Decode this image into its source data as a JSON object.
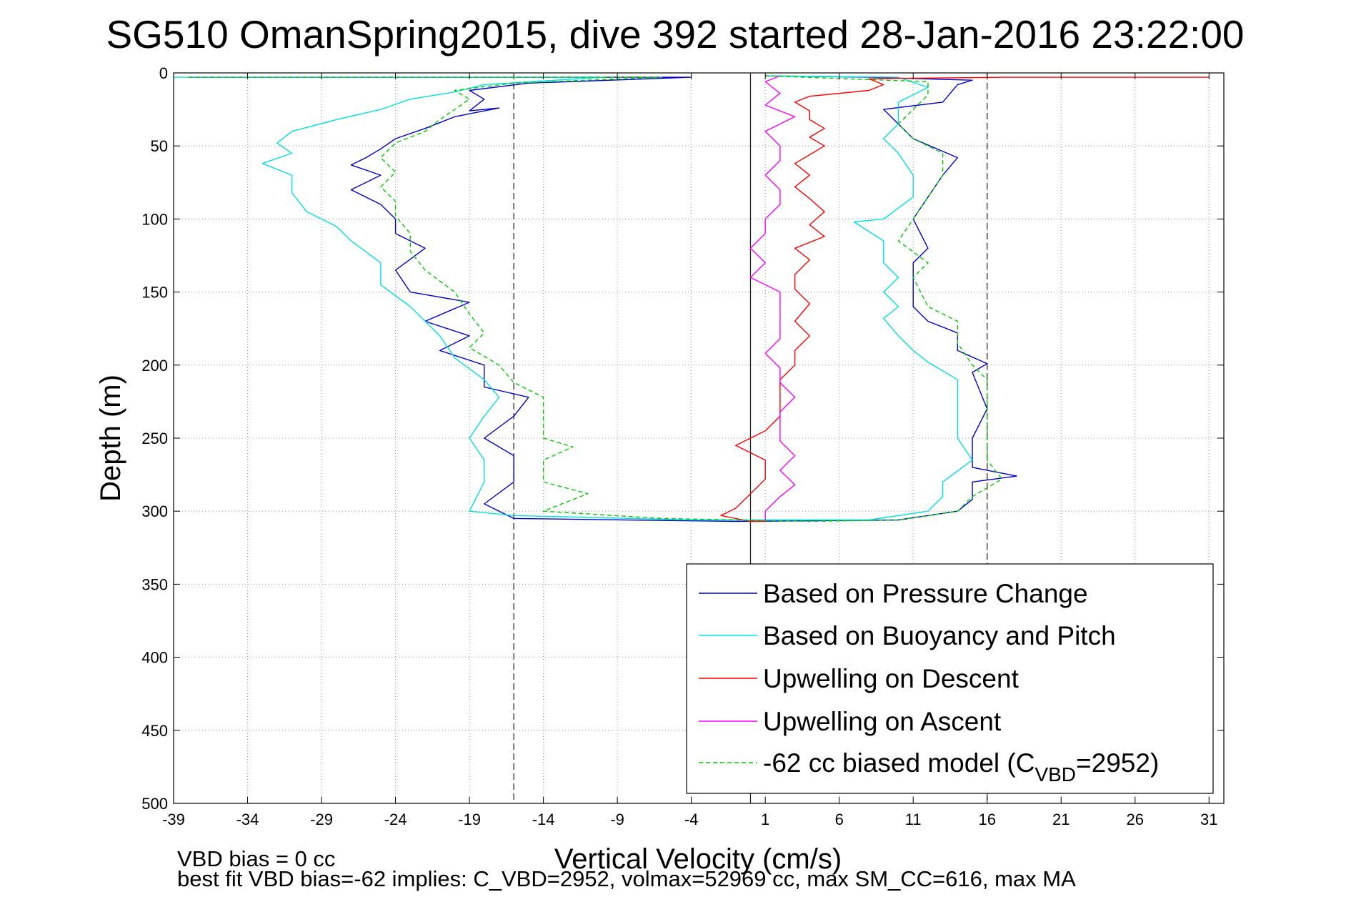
{
  "chart_data": {
    "type": "line",
    "title": "SG510 OmanSpring2015, dive 392 started 28-Jan-2016 23:22:00",
    "xlabel": "Vertical Velocity (cm/s)",
    "ylabel": "Depth (m)",
    "xlim": [
      -39,
      32
    ],
    "ylim": [
      500,
      0
    ],
    "y_reversed": true,
    "grid": true,
    "x_ticks": [
      -39,
      -34,
      -29,
      -24,
      -19,
      -14,
      -9,
      -4,
      1,
      6,
      11,
      16,
      21,
      26,
      31
    ],
    "y_ticks": [
      0,
      50,
      100,
      150,
      200,
      250,
      300,
      350,
      400,
      450,
      500
    ],
    "reference_lines": {
      "zero_x": 0,
      "dashed_x": [
        -16,
        16
      ]
    },
    "legend_position": "lower-right",
    "series": [
      {
        "name": "Based on Pressure Change",
        "color": "#0000cc",
        "style": "solid",
        "points": [
          [
            -38,
            3
          ],
          [
            -4,
            3
          ],
          [
            -15,
            7
          ],
          [
            -19,
            12
          ],
          [
            -18,
            18
          ],
          [
            -19,
            26
          ],
          [
            -17,
            24
          ],
          [
            -20,
            30
          ],
          [
            -22,
            38
          ],
          [
            -24,
            45
          ],
          [
            -25,
            52
          ],
          [
            -26,
            58
          ],
          [
            -27,
            63
          ],
          [
            -25,
            70
          ],
          [
            -27,
            80
          ],
          [
            -25,
            90
          ],
          [
            -24,
            100
          ],
          [
            -24,
            110
          ],
          [
            -22,
            120
          ],
          [
            -24,
            135
          ],
          [
            -23,
            150
          ],
          [
            -19,
            157
          ],
          [
            -22,
            170
          ],
          [
            -19,
            180
          ],
          [
            -21,
            190
          ],
          [
            -18,
            200
          ],
          [
            -18,
            215
          ],
          [
            -15,
            222
          ],
          [
            -16,
            235
          ],
          [
            -18,
            250
          ],
          [
            -16,
            262
          ],
          [
            -16,
            280
          ],
          [
            -18,
            295
          ],
          [
            -16,
            305
          ],
          [
            -1,
            307
          ],
          [
            10,
            306
          ],
          [
            14,
            300
          ],
          [
            15,
            292
          ],
          [
            15,
            280
          ],
          [
            18,
            276
          ],
          [
            15,
            270
          ],
          [
            15,
            250
          ],
          [
            16,
            230
          ],
          [
            15,
            205
          ],
          [
            16,
            199
          ],
          [
            14,
            190
          ],
          [
            14,
            178
          ],
          [
            12,
            170
          ],
          [
            11,
            160
          ],
          [
            11,
            145
          ],
          [
            11,
            130
          ],
          [
            12,
            120
          ],
          [
            11,
            100
          ],
          [
            12,
            85
          ],
          [
            13,
            70
          ],
          [
            14,
            58
          ],
          [
            11,
            45
          ],
          [
            10,
            35
          ],
          [
            9,
            25
          ],
          [
            13,
            20
          ],
          [
            14,
            8
          ],
          [
            15,
            5
          ],
          [
            8,
            3
          ],
          [
            1,
            2
          ]
        ]
      },
      {
        "name": "Based on Buoyancy and Pitch",
        "color": "#00e0e0",
        "style": "solid",
        "points": [
          [
            -39,
            3
          ],
          [
            -10,
            3
          ],
          [
            -18,
            8
          ],
          [
            -20,
            13
          ],
          [
            -23,
            18
          ],
          [
            -25,
            25
          ],
          [
            -28,
            32
          ],
          [
            -31,
            40
          ],
          [
            -32,
            48
          ],
          [
            -31,
            55
          ],
          [
            -33,
            62
          ],
          [
            -31,
            70
          ],
          [
            -31,
            82
          ],
          [
            -30,
            95
          ],
          [
            -28,
            105
          ],
          [
            -27,
            115
          ],
          [
            -25,
            130
          ],
          [
            -25,
            145
          ],
          [
            -23,
            160
          ],
          [
            -22,
            170
          ],
          [
            -21,
            180
          ],
          [
            -20,
            195
          ],
          [
            -18,
            210
          ],
          [
            -17,
            222
          ],
          [
            -18,
            235
          ],
          [
            -19,
            250
          ],
          [
            -18,
            265
          ],
          [
            -18,
            280
          ],
          [
            -19,
            300
          ],
          [
            -16,
            303
          ],
          [
            -4,
            306
          ],
          [
            8,
            306
          ],
          [
            12,
            300
          ],
          [
            13,
            290
          ],
          [
            13,
            280
          ],
          [
            15,
            265
          ],
          [
            14,
            250
          ],
          [
            14,
            230
          ],
          [
            14,
            210
          ],
          [
            12,
            198
          ],
          [
            11,
            190
          ],
          [
            10,
            180
          ],
          [
            9,
            168
          ],
          [
            10,
            160
          ],
          [
            9,
            150
          ],
          [
            10,
            140
          ],
          [
            9,
            130
          ],
          [
            9,
            115
          ],
          [
            7,
            102
          ],
          [
            9,
            100
          ],
          [
            11,
            85
          ],
          [
            11,
            70
          ],
          [
            10,
            55
          ],
          [
            9,
            45
          ],
          [
            10,
            35
          ],
          [
            10,
            20
          ],
          [
            12,
            10
          ],
          [
            10,
            3
          ],
          [
            1,
            2
          ]
        ]
      },
      {
        "name": "Upwelling on Descent",
        "color": "#ff0000",
        "style": "solid",
        "points": [
          [
            31,
            3
          ],
          [
            17,
            3
          ],
          [
            8,
            4
          ],
          [
            9,
            8
          ],
          [
            8,
            12
          ],
          [
            4,
            16
          ],
          [
            3,
            20
          ],
          [
            4,
            26
          ],
          [
            4,
            32
          ],
          [
            5,
            38
          ],
          [
            4,
            44
          ],
          [
            5,
            50
          ],
          [
            4,
            56
          ],
          [
            3,
            62
          ],
          [
            4,
            70
          ],
          [
            3,
            78
          ],
          [
            4,
            86
          ],
          [
            5,
            95
          ],
          [
            4,
            104
          ],
          [
            5,
            112
          ],
          [
            3,
            120
          ],
          [
            4,
            128
          ],
          [
            3,
            138
          ],
          [
            3,
            148
          ],
          [
            4,
            158
          ],
          [
            3,
            170
          ],
          [
            4,
            180
          ],
          [
            3,
            190
          ],
          [
            3,
            200
          ],
          [
            2,
            210
          ],
          [
            2,
            222
          ],
          [
            2,
            235
          ],
          [
            1,
            245
          ],
          [
            -1,
            255
          ],
          [
            1,
            265
          ],
          [
            1,
            278
          ],
          [
            0,
            288
          ],
          [
            -1,
            298
          ],
          [
            -2,
            303
          ],
          [
            0,
            307
          ],
          [
            1,
            307
          ]
        ]
      },
      {
        "name": "Upwelling on Ascent",
        "color": "#ff00ff",
        "style": "solid",
        "points": [
          [
            1,
            307
          ],
          [
            1,
            300
          ],
          [
            2,
            290
          ],
          [
            3,
            282
          ],
          [
            2,
            272
          ],
          [
            3,
            262
          ],
          [
            2,
            252
          ],
          [
            2,
            242
          ],
          [
            2,
            232
          ],
          [
            3,
            222
          ],
          [
            2,
            212
          ],
          [
            2,
            202
          ],
          [
            1,
            192
          ],
          [
            2,
            182
          ],
          [
            2,
            172
          ],
          [
            2,
            162
          ],
          [
            2,
            150
          ],
          [
            0,
            140
          ],
          [
            1,
            130
          ],
          [
            0,
            120
          ],
          [
            1,
            110
          ],
          [
            1,
            100
          ],
          [
            2,
            90
          ],
          [
            2,
            80
          ],
          [
            1,
            70
          ],
          [
            2,
            60
          ],
          [
            2,
            50
          ],
          [
            1,
            40
          ],
          [
            3,
            30
          ],
          [
            1,
            22
          ],
          [
            2,
            14
          ],
          [
            1,
            6
          ],
          [
            2,
            2
          ]
        ]
      },
      {
        "name": "-62 cc biased model (CVBD=2952)",
        "name_main": "-62 cc biased model (C",
        "name_sub": "VBD",
        "name_tail": "=2952)",
        "color": "#00cc00",
        "style": "dashed",
        "points": [
          [
            -38,
            3
          ],
          [
            -6,
            3
          ],
          [
            -16,
            7
          ],
          [
            -20,
            12
          ],
          [
            -19,
            18
          ],
          [
            -20,
            25
          ],
          [
            -21,
            32
          ],
          [
            -22,
            40
          ],
          [
            -24,
            48
          ],
          [
            -25,
            58
          ],
          [
            -24,
            68
          ],
          [
            -25,
            78
          ],
          [
            -24,
            88
          ],
          [
            -24,
            98
          ],
          [
            -23,
            110
          ],
          [
            -23,
            122
          ],
          [
            -22,
            135
          ],
          [
            -20,
            150
          ],
          [
            -19,
            165
          ],
          [
            -18,
            178
          ],
          [
            -19,
            188
          ],
          [
            -17,
            200
          ],
          [
            -16,
            212
          ],
          [
            -14,
            222
          ],
          [
            -14,
            235
          ],
          [
            -14,
            250
          ],
          [
            -12,
            256
          ],
          [
            -14,
            265
          ],
          [
            -14,
            280
          ],
          [
            -11,
            288
          ],
          [
            -14,
            300
          ],
          [
            -6,
            305
          ],
          [
            4,
            307
          ],
          [
            10,
            306
          ],
          [
            14,
            300
          ],
          [
            15,
            290
          ],
          [
            17,
            278
          ],
          [
            16,
            265
          ],
          [
            16,
            250
          ],
          [
            16,
            230
          ],
          [
            16,
            210
          ],
          [
            15,
            200
          ],
          [
            14,
            185
          ],
          [
            14,
            170
          ],
          [
            12,
            160
          ],
          [
            11,
            140
          ],
          [
            12,
            130
          ],
          [
            10,
            115
          ],
          [
            11,
            100
          ],
          [
            12,
            85
          ],
          [
            13,
            70
          ],
          [
            13,
            55
          ],
          [
            11,
            45
          ],
          [
            10,
            35
          ],
          [
            11,
            25
          ],
          [
            12,
            15
          ],
          [
            12,
            6
          ],
          [
            1,
            2
          ]
        ]
      }
    ],
    "notes": [
      "VBD bias = 0 cc",
      "best fit VBD bias=-62 implies: C_VBD=2952, volmax=52969 cc, max SM_CC=616, max MA"
    ]
  }
}
